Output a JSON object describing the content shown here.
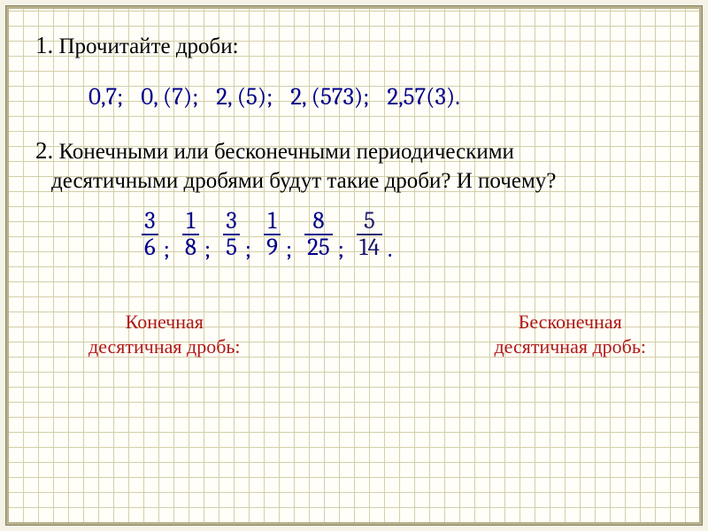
{
  "task1": {
    "title_prefix": "1.",
    "title_text": "Прочитайте дроби:",
    "decimals": [
      "0,7;",
      "0, (7);",
      "2, (5);",
      "2, (573);",
      "2,57(3)."
    ]
  },
  "task2": {
    "title_prefix": "2.",
    "title_line1": "Конечными или бесконечными периодическими",
    "title_line2": "десятичными дробями будут такие дроби? И почему?",
    "fractions": [
      {
        "n": "3",
        "d": "6",
        "alt": false
      },
      {
        "n": "1",
        "d": "8",
        "alt": false
      },
      {
        "n": "3",
        "d": "5",
        "alt": false
      },
      {
        "n": "1",
        "d": "9",
        "alt": false
      },
      {
        "n": "8",
        "d": "25",
        "alt": false
      },
      {
        "n": "5",
        "d": "14",
        "alt": true
      }
    ],
    "separator": ";",
    "terminator": "."
  },
  "labels": {
    "left_line1": "Конечная",
    "left_line2": "десятичная дробь:",
    "right_line1": "Бесконечная",
    "right_line2": "десятичная дробь:"
  },
  "colors": {
    "math_color": "#00008b",
    "label_color": "#b01818",
    "grid_color": "#d4cfa8",
    "frame_color": "#b8b088"
  }
}
